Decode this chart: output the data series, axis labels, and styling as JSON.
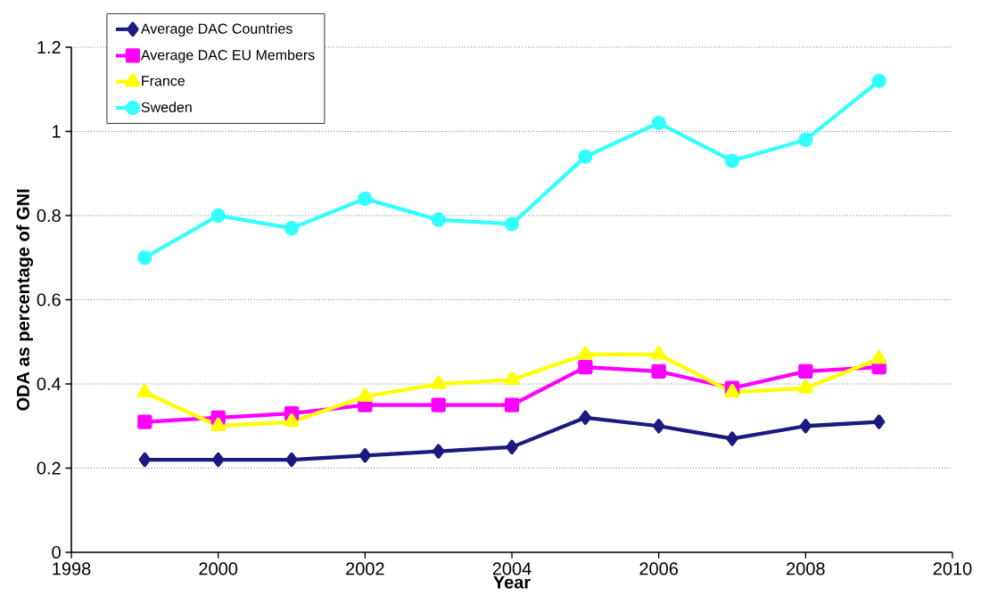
{
  "chart_data": {
    "type": "line",
    "xlabel": "Year",
    "ylabel": "ODA as percentage of GNI",
    "x": [
      1999,
      2000,
      2001,
      2002,
      2003,
      2004,
      2005,
      2006,
      2007,
      2008,
      2009
    ],
    "series": [
      {
        "name": "Average DAC Countries",
        "color": "#1a1a80",
        "marker": "diamond",
        "values": [
          0.22,
          0.22,
          0.22,
          0.23,
          0.24,
          0.25,
          0.32,
          0.3,
          0.27,
          0.3,
          0.31
        ]
      },
      {
        "name": "Average DAC EU Members",
        "color": "#ff00ff",
        "marker": "square",
        "values": [
          0.31,
          0.32,
          0.33,
          0.35,
          0.35,
          0.35,
          0.44,
          0.43,
          0.39,
          0.43,
          0.44
        ]
      },
      {
        "name": "France",
        "color": "#ffff00",
        "marker": "triangle",
        "values": [
          0.38,
          0.3,
          0.31,
          0.37,
          0.4,
          0.41,
          0.47,
          0.47,
          0.38,
          0.39,
          0.46
        ]
      },
      {
        "name": "Sweden",
        "color": "#33ffff",
        "marker": "circle",
        "values": [
          0.7,
          0.8,
          0.77,
          0.84,
          0.79,
          0.78,
          0.94,
          1.02,
          0.93,
          0.98,
          1.12
        ]
      }
    ],
    "xlim": [
      1998,
      2010
    ],
    "xticks": [
      1998,
      2000,
      2002,
      2004,
      2006,
      2008,
      2010
    ],
    "ylim": [
      0,
      1.2
    ],
    "yticks": [
      0,
      0.2,
      0.4,
      0.6,
      0.8,
      1,
      1.2
    ],
    "grid": "y",
    "legend": "top left",
    "line_style": "solid"
  }
}
